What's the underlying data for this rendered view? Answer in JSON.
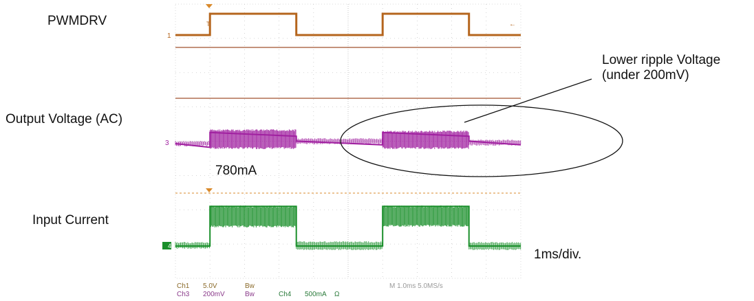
{
  "labels": {
    "pwmdrv": "PWMDRV",
    "output_voltage": "Output Voltage (AC)",
    "input_current": "Input Current",
    "current_780": "780mA",
    "ripple_line1": "Lower ripple Voltage",
    "ripple_line2": "(under 200mV)",
    "timebase": "1ms/div."
  },
  "scope": {
    "ch1_marker": "1",
    "ch3_marker": "3",
    "ch4_marker": "4",
    "trigger_marker": "T",
    "readout": {
      "ch1": "Ch1",
      "ch1_scale": "5.0V",
      "ch1_bw": "Bw",
      "ch3": "Ch3",
      "ch3_scale": "200mV",
      "ch3_bw": "Bw",
      "ch4": "Ch4",
      "ch4_scale": "500mA",
      "ch4_unit": "Ω",
      "timebase": "M 1.0ms 5.0MS/s"
    }
  },
  "colors": {
    "ch1": "#b5651d",
    "ch3": "#a020a0",
    "ch4": "#1a8f2a",
    "grid": "#c8c8c8",
    "divider": "#a0522d"
  },
  "chart_data": {
    "type": "line",
    "x_unit": "ms",
    "x_range": [
      0,
      10
    ],
    "series": [
      {
        "name": "PWMDRV",
        "x": [
          0,
          1,
          1,
          3.5,
          3.5,
          6,
          6,
          8.5,
          8.5,
          10
        ],
        "y": [
          0,
          0,
          5,
          5,
          0,
          0,
          5,
          5,
          0,
          0
        ]
      },
      {
        "name": "Output Voltage (AC)",
        "x": [
          0,
          1,
          1,
          3.5,
          3.5,
          6,
          6,
          8.5,
          8.5,
          10
        ],
        "y": [
          0,
          -0.03,
          0.09,
          0.06,
          0.02,
          -0.01,
          0.09,
          0.06,
          0.02,
          -0.01
        ]
      },
      {
        "name": "Input Current",
        "x": [
          0,
          1,
          1,
          3.5,
          3.5,
          6,
          6,
          8.5,
          8.5,
          10
        ],
        "y": [
          0,
          0,
          0.78,
          0.78,
          0,
          0,
          0.78,
          0.78,
          0,
          0
        ]
      }
    ]
  }
}
